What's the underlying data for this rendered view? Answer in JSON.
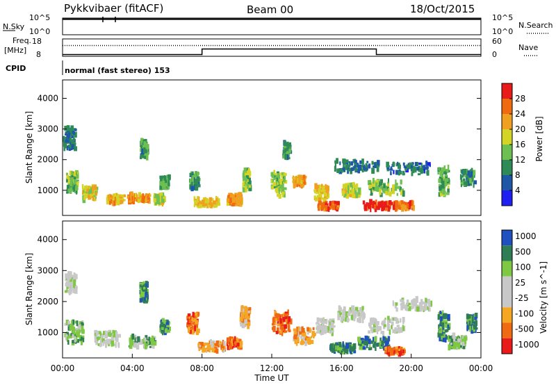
{
  "header": {
    "station": "Pykkvibaer (fitACF)",
    "beam": "Beam 00",
    "date": "18/Oct/2015"
  },
  "top_panels": {
    "nsky": {
      "label": "N.Sky",
      "left_ticks": [
        "10^5",
        "10^0"
      ],
      "right_label": "N.Search",
      "right_ticks": [
        "10^5",
        "10^0"
      ],
      "value_level": 0.93
    },
    "freq": {
      "label_line1": "Freq.",
      "label_line2": "[MHz]",
      "left_ticks": [
        "18",
        "8"
      ],
      "right_label": "Nave",
      "right_ticks": [
        "60",
        "0"
      ],
      "freq_steps": [
        {
          "start_hour": 0.0,
          "end_hour": 8.0,
          "level": 0.1
        },
        {
          "start_hour": 8.0,
          "end_hour": 18.0,
          "level": 0.42
        },
        {
          "start_hour": 18.0,
          "end_hour": 24.0,
          "level": 0.1
        }
      ],
      "nave_level": 0.62
    },
    "cpid": {
      "label": "CPID",
      "text": "normal (fast stereo) 153"
    }
  },
  "chart_data": [
    {
      "type": "heatmap",
      "name": "power",
      "ylabel": "Slant Range [km]",
      "yticks": [
        "1000",
        "2000",
        "3000",
        "4000"
      ],
      "ylim": [
        180,
        4600
      ],
      "xlim": [
        0,
        24
      ],
      "colorbar_label": "Power [dB]",
      "colorbar_ticks": [
        "4",
        "8",
        "12",
        "16",
        "20",
        "24",
        "28"
      ],
      "colorbar_range": [
        0,
        32
      ],
      "colors": [
        "#1f1ff2",
        "#1f57a7",
        "#2e8b57",
        "#6cbf50",
        "#d4d427",
        "#f0a020",
        "#f06a10",
        "#e81a1a"
      ],
      "patches": [
        {
          "t": 0.5,
          "r": 1250,
          "dt": 0.6,
          "dr": 650,
          "v": 14
        },
        {
          "t": 1.5,
          "r": 900,
          "dt": 0.8,
          "dr": 450,
          "v": 18
        },
        {
          "t": 0.3,
          "r": 2700,
          "dt": 0.8,
          "dr": 700,
          "v": 8
        },
        {
          "t": 3.0,
          "r": 700,
          "dt": 1.0,
          "dr": 250,
          "v": 21
        },
        {
          "t": 4.3,
          "r": 750,
          "dt": 1.3,
          "dr": 250,
          "v": 22
        },
        {
          "t": 5.5,
          "r": 700,
          "dt": 0.6,
          "dr": 300,
          "v": 18
        },
        {
          "t": 4.6,
          "r": 2350,
          "dt": 0.4,
          "dr": 600,
          "v": 11
        },
        {
          "t": 5.8,
          "r": 1250,
          "dt": 0.5,
          "dr": 400,
          "v": 12
        },
        {
          "t": 8.2,
          "r": 600,
          "dt": 1.4,
          "dr": 250,
          "v": 20
        },
        {
          "t": 9.8,
          "r": 700,
          "dt": 0.8,
          "dr": 300,
          "v": 22
        },
        {
          "t": 10.5,
          "r": 1350,
          "dt": 0.4,
          "dr": 700,
          "v": 15
        },
        {
          "t": 7.5,
          "r": 1300,
          "dt": 0.5,
          "dr": 500,
          "v": 11
        },
        {
          "t": 12.3,
          "r": 1200,
          "dt": 0.8,
          "dr": 800,
          "v": 15
        },
        {
          "t": 13.5,
          "r": 1300,
          "dt": 0.7,
          "dr": 300,
          "v": 22
        },
        {
          "t": 12.8,
          "r": 2300,
          "dt": 0.4,
          "dr": 500,
          "v": 10
        },
        {
          "t": 14.8,
          "r": 900,
          "dt": 0.8,
          "dr": 500,
          "v": 20
        },
        {
          "t": 15.2,
          "r": 500,
          "dt": 1.2,
          "dr": 250,
          "v": 27
        },
        {
          "t": 16.5,
          "r": 1000,
          "dt": 1.0,
          "dr": 400,
          "v": 17
        },
        {
          "t": 18.0,
          "r": 500,
          "dt": 1.6,
          "dr": 250,
          "v": 29
        },
        {
          "t": 19.5,
          "r": 500,
          "dt": 1.2,
          "dr": 220,
          "v": 25
        },
        {
          "t": 18.5,
          "r": 1100,
          "dt": 2.0,
          "dr": 500,
          "v": 14
        },
        {
          "t": 19.8,
          "r": 1700,
          "dt": 2.5,
          "dr": 350,
          "v": 7
        },
        {
          "t": 21.8,
          "r": 1300,
          "dt": 0.6,
          "dr": 900,
          "v": 13
        },
        {
          "t": 23.2,
          "r": 1400,
          "dt": 0.8,
          "dr": 500,
          "v": 11
        },
        {
          "t": 16.8,
          "r": 1800,
          "dt": 2.5,
          "dr": 350,
          "v": 8
        }
      ]
    },
    {
      "type": "heatmap",
      "name": "velocity",
      "ylabel": "Slant Range [km]",
      "yticks": [
        "1000",
        "2000",
        "3000",
        "4000"
      ],
      "ylim": [
        180,
        4600
      ],
      "xlim": [
        0,
        24
      ],
      "xlabel": "Time UT",
      "xticks": [
        "00:00",
        "04:00",
        "08:00",
        "12:00",
        "16:00",
        "20:00",
        "00:00"
      ],
      "colorbar_label": "Velocity [m s^-1]",
      "colorbar_ticks": [
        "1000",
        "500",
        "100",
        "25",
        "-25",
        "-100",
        "-500",
        "-1000"
      ],
      "colors": [
        "#2050c0",
        "#2e7d55",
        "#7fc844",
        "#c8c8c8",
        "#c8c8c8",
        "#f5a623",
        "#ef6a12",
        "#e81a1a"
      ],
      "patches": [
        {
          "t": 0.6,
          "r": 1000,
          "dt": 1.0,
          "dr": 700,
          "c": 2
        },
        {
          "t": 2.5,
          "r": 800,
          "dt": 1.5,
          "dr": 450,
          "c": 3
        },
        {
          "t": 4.5,
          "r": 700,
          "dt": 1.5,
          "dr": 350,
          "c": 2
        },
        {
          "t": 4.6,
          "r": 2300,
          "dt": 0.4,
          "dr": 600,
          "c": 1
        },
        {
          "t": 5.8,
          "r": 1200,
          "dt": 0.5,
          "dr": 400,
          "c": 1
        },
        {
          "t": 8.5,
          "r": 550,
          "dt": 1.6,
          "dr": 300,
          "c": 5
        },
        {
          "t": 9.8,
          "r": 650,
          "dt": 0.8,
          "dr": 300,
          "c": 6
        },
        {
          "t": 7.4,
          "r": 1300,
          "dt": 0.6,
          "dr": 600,
          "c": 6
        },
        {
          "t": 10.4,
          "r": 1500,
          "dt": 0.5,
          "dr": 600,
          "c": 5
        },
        {
          "t": 12.5,
          "r": 1300,
          "dt": 1.0,
          "dr": 700,
          "c": 6
        },
        {
          "t": 13.8,
          "r": 900,
          "dt": 1.2,
          "dr": 500,
          "c": 5
        },
        {
          "t": 15.0,
          "r": 1200,
          "dt": 1.0,
          "dr": 450,
          "c": 3
        },
        {
          "t": 16.0,
          "r": 500,
          "dt": 1.4,
          "dr": 250,
          "c": 1
        },
        {
          "t": 17.8,
          "r": 650,
          "dt": 1.8,
          "dr": 350,
          "c": 1
        },
        {
          "t": 19.0,
          "r": 400,
          "dt": 1.2,
          "dr": 200,
          "c": 6
        },
        {
          "t": 18.5,
          "r": 1200,
          "dt": 2.0,
          "dr": 500,
          "c": 3
        },
        {
          "t": 20.0,
          "r": 1900,
          "dt": 2.2,
          "dr": 350,
          "c": 3
        },
        {
          "t": 21.8,
          "r": 1200,
          "dt": 0.6,
          "dr": 900,
          "c": 1
        },
        {
          "t": 22.6,
          "r": 700,
          "dt": 1.0,
          "dr": 400,
          "c": 2
        },
        {
          "t": 23.4,
          "r": 1300,
          "dt": 0.5,
          "dr": 500,
          "c": 1
        },
        {
          "t": 0.4,
          "r": 2600,
          "dt": 0.6,
          "dr": 600,
          "c": 3
        },
        {
          "t": 16.5,
          "r": 1600,
          "dt": 1.5,
          "dr": 400,
          "c": 3
        }
      ]
    }
  ]
}
